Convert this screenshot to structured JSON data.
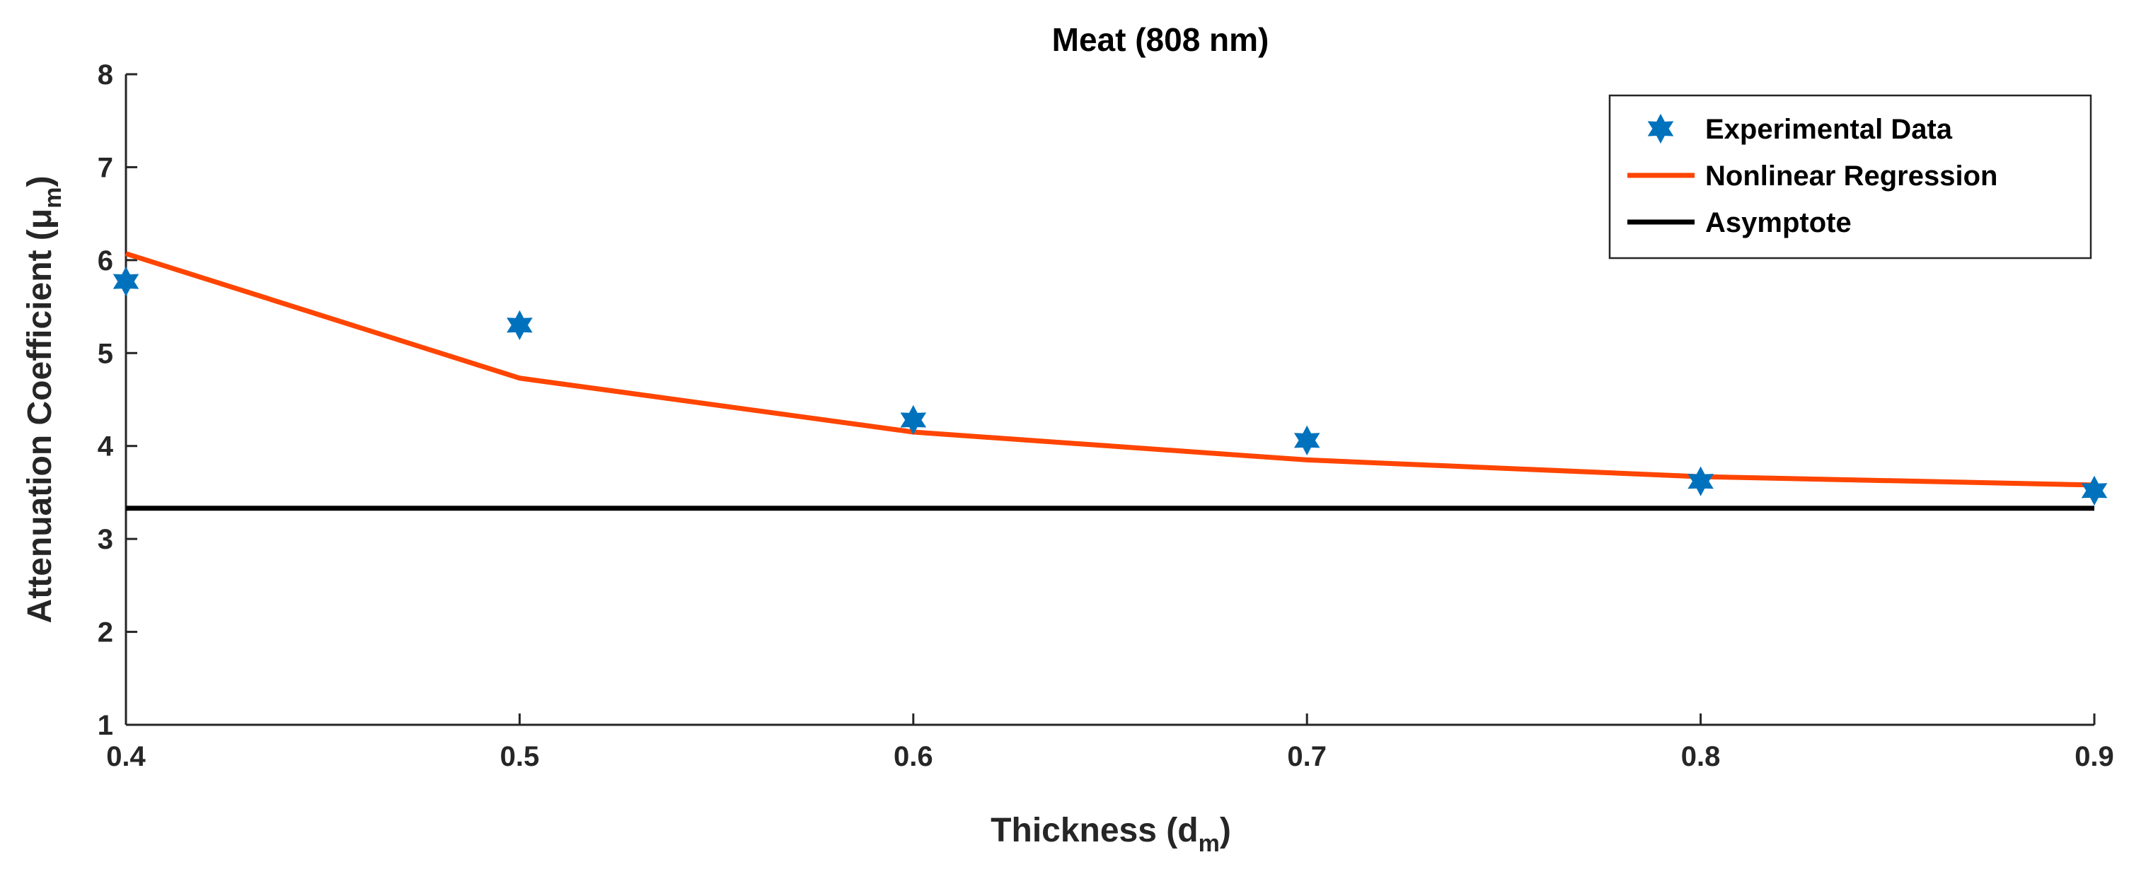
{
  "chart_data": {
    "type": "line",
    "title": "Meat (808 nm)",
    "xlabel": {
      "main": "Thickness (d",
      "sub": "m",
      "close": ")"
    },
    "ylabel": {
      "main": "Attenuation Coefficient (μ",
      "sub": "m",
      "close": ")"
    },
    "xlim": [
      0.4,
      0.9
    ],
    "ylim": [
      1,
      8
    ],
    "xticks": [
      0.4,
      0.5,
      0.6,
      0.7,
      0.8,
      0.9
    ],
    "xtick_labels": [
      "0.4",
      "0.5",
      "0.6",
      "0.7",
      "0.8",
      "0.9"
    ],
    "yticks": [
      1,
      2,
      3,
      4,
      5,
      6,
      7,
      8
    ],
    "ytick_labels": [
      "1",
      "2",
      "3",
      "4",
      "5",
      "6",
      "7",
      "8"
    ],
    "grid": false,
    "legend_position": "top-right",
    "series": [
      {
        "name": "Experimental Data",
        "kind": "scatter",
        "marker": "hexagram",
        "color": "#0072BD",
        "x": [
          0.4,
          0.5,
          0.6,
          0.7,
          0.8,
          0.9
        ],
        "y": [
          5.77,
          5.3,
          4.28,
          4.06,
          3.62,
          3.52
        ]
      },
      {
        "name": "Nonlinear Regression",
        "kind": "line",
        "color": "#FF4500",
        "x": [
          0.4,
          0.5,
          0.6,
          0.7,
          0.8,
          0.9
        ],
        "y": [
          6.07,
          4.73,
          4.15,
          3.85,
          3.67,
          3.58
        ]
      },
      {
        "name": "Asymptote",
        "kind": "line",
        "color": "#000000",
        "x": [
          0.4,
          0.9
        ],
        "y": [
          3.33,
          3.33
        ]
      }
    ]
  }
}
